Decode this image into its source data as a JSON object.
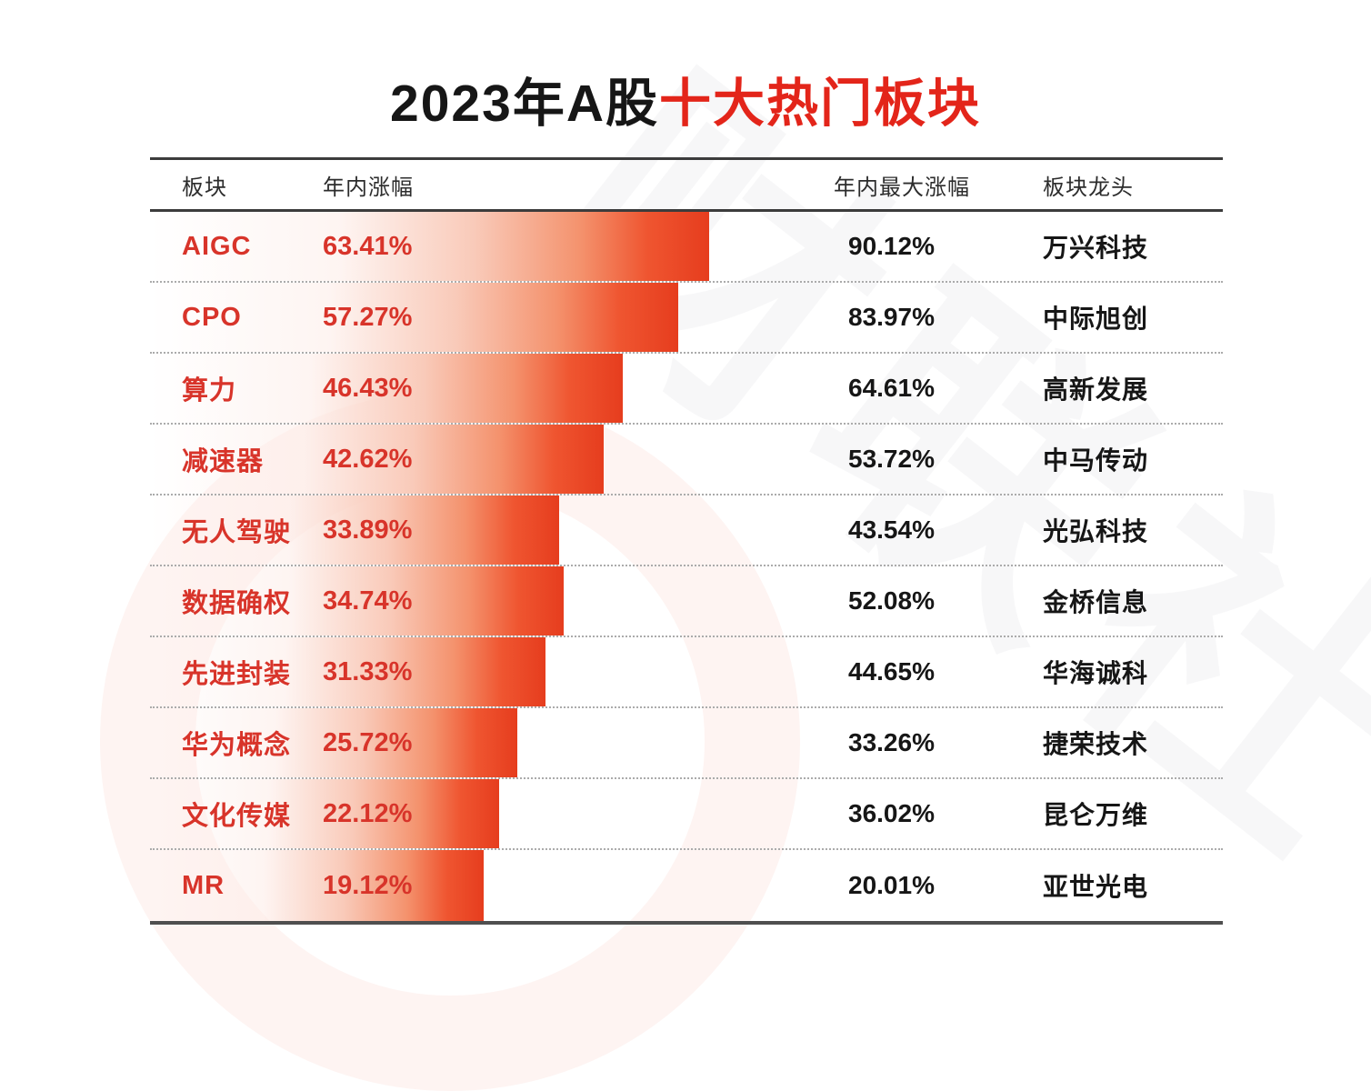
{
  "title": {
    "prefix": "2023年A股",
    "highlight": "十大热门板块"
  },
  "watermark": "财联社",
  "colors": {
    "title_red": "#e3251a",
    "row_red": "#d8342a",
    "bar_red": "#ee4b2a",
    "ink": "#161616"
  },
  "chart_data": {
    "type": "bar",
    "orientation": "horizontal",
    "title": "2023年A股十大热门板块",
    "columns": [
      "板块",
      "年内涨幅",
      "年内最大涨幅",
      "板块龙头"
    ],
    "bar_color": "#ee4b2a",
    "value_field": "年内涨幅",
    "rows": [
      {
        "sector": "AIGC",
        "ytd_gain": 63.41,
        "ytd_gain_label": "63.41%",
        "max_gain": 90.12,
        "max_gain_label": "90.12%",
        "leader": "万兴科技"
      },
      {
        "sector": "CPO",
        "ytd_gain": 57.27,
        "ytd_gain_label": "57.27%",
        "max_gain": 83.97,
        "max_gain_label": "83.97%",
        "leader": "中际旭创"
      },
      {
        "sector": "算力",
        "ytd_gain": 46.43,
        "ytd_gain_label": "46.43%",
        "max_gain": 64.61,
        "max_gain_label": "64.61%",
        "leader": "高新发展"
      },
      {
        "sector": "减速器",
        "ytd_gain": 42.62,
        "ytd_gain_label": "42.62%",
        "max_gain": 53.72,
        "max_gain_label": "53.72%",
        "leader": "中马传动"
      },
      {
        "sector": "无人驾驶",
        "ytd_gain": 33.89,
        "ytd_gain_label": "33.89%",
        "max_gain": 43.54,
        "max_gain_label": "43.54%",
        "leader": "光弘科技"
      },
      {
        "sector": "数据确权",
        "ytd_gain": 34.74,
        "ytd_gain_label": "34.74%",
        "max_gain": 52.08,
        "max_gain_label": "52.08%",
        "leader": "金桥信息"
      },
      {
        "sector": "先进封装",
        "ytd_gain": 31.33,
        "ytd_gain_label": "31.33%",
        "max_gain": 44.65,
        "max_gain_label": "44.65%",
        "leader": "华海诚科"
      },
      {
        "sector": "华为概念",
        "ytd_gain": 25.72,
        "ytd_gain_label": "25.72%",
        "max_gain": 33.26,
        "max_gain_label": "33.26%",
        "leader": "捷荣技术"
      },
      {
        "sector": "文化传媒",
        "ytd_gain": 22.12,
        "ytd_gain_label": "22.12%",
        "max_gain": 36.02,
        "max_gain_label": "36.02%",
        "leader": "昆仑万维"
      },
      {
        "sector": "MR",
        "ytd_gain": 19.12,
        "ytd_gain_label": "19.12%",
        "max_gain": 20.01,
        "max_gain_label": "20.01%",
        "leader": "亚世光电"
      }
    ]
  }
}
